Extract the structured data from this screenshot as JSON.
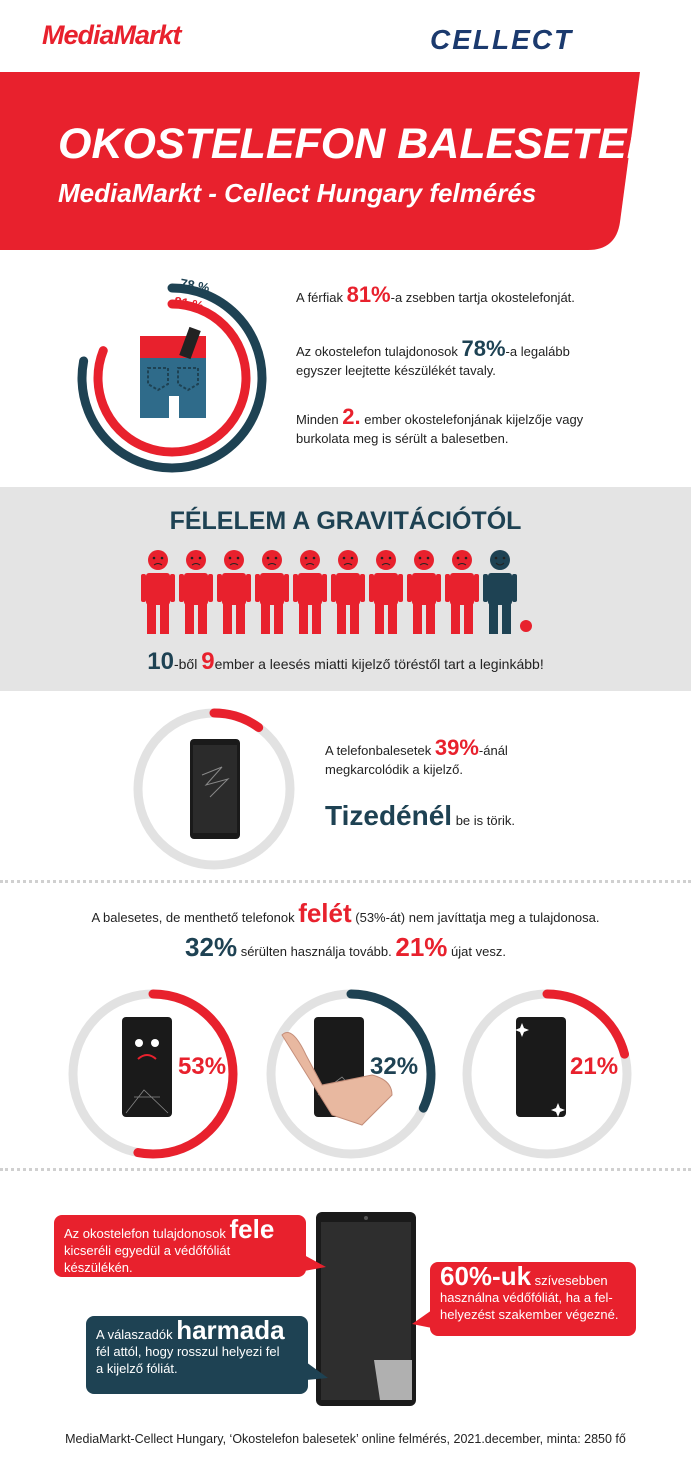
{
  "header": {
    "brand_left": "MediaMarkt",
    "brand_right": "CELLECT",
    "title": "OKOSTELEFON BALESETEK",
    "subtitle": "MediaMarkt - Cellect Hungary felmérés"
  },
  "colors": {
    "red": "#e8212d",
    "navy": "#1e4253",
    "gray": "#e4e4e4"
  },
  "section1": {
    "ring_label_outer": "78 %",
    "ring_label_inner": "81 %",
    "ring_outer_fraction": 0.78,
    "ring_inner_fraction": 0.81,
    "stat1_pre": "A férfiak ",
    "stat1_num": "81%",
    "stat1_post": "-a zsebben tartja okostelefonját.",
    "stat2_pre": "Az okostelefon tulajdonosok ",
    "stat2_num": "78%",
    "stat2_post": "-a  legalább",
    "stat2_line2": "egyszer leejtette készülékét tavaly.",
    "stat3_pre": "Minden ",
    "stat3_num": "2.",
    "stat3_post": " ember okostelefonjának kijelzője vagy",
    "stat3_line2": "burkolata meg is sérült a balesetben."
  },
  "section2": {
    "title": "FÉLELEM A GRAVITÁCIÓTÓL",
    "people_total": 10,
    "people_afraid": 9,
    "caption_n1": "10",
    "caption_mid": "-ből ",
    "caption_n2": "9",
    "caption_post": "ember a leesés miatti kijelző töréstől tart a leginkább!"
  },
  "section3": {
    "ring_fraction": 0.1,
    "line1_pre": "A telefonbalesetek ",
    "line1_num": "39%",
    "line1_post": "-ánál",
    "line2": "megkarcolódik a kijelző.",
    "big_word": "Tizedénél",
    "big_post": " be is törik."
  },
  "section4": {
    "line1_pre": "A balesetes, de menthető telefonok ",
    "line1_big": "felét",
    "line1_post": " (53%-át) nem javíttatja meg a tulajdonosa.",
    "line2_num1": "32%",
    "line2_mid": " sérülten használja tovább. ",
    "line2_num2": "21%",
    "line2_post": " újat vesz.",
    "rings": [
      {
        "label": "53%",
        "fraction": 0.53,
        "color": "#e8212d"
      },
      {
        "label": "32%",
        "fraction": 0.32,
        "color": "#1e4253"
      },
      {
        "label": "21%",
        "fraction": 0.21,
        "color": "#e8212d"
      }
    ]
  },
  "section5": {
    "callout1_pre": "Az okostelefon tulajdonosok ",
    "callout1_big": "fele",
    "callout1_line2": "kicseréli egyedül a védőfóliát készülékén.",
    "callout2_big": "60%-uk",
    "callout2_post": " szívesebben",
    "callout2_line2": "használna védőfóliát, ha a fel-",
    "callout2_line3": "helyezést szakember végezné.",
    "callout3_pre": "A válaszadók ",
    "callout3_big": "harmada",
    "callout3_line2": "fél attól, hogy rosszul helyezi fel",
    "callout3_line3": "a kijelző fóliát."
  },
  "footer": {
    "source": "MediaMarkt-Cellect Hungary, ‘Okostelefon balesetek’ online felmérés, 2021.december, minta: 2850 fő"
  }
}
